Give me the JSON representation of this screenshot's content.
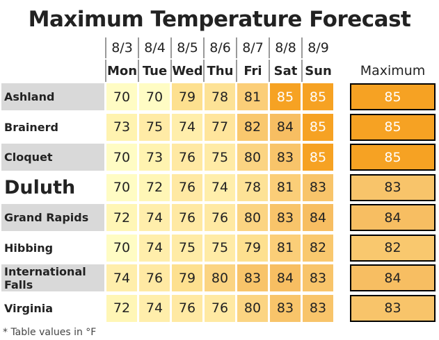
{
  "title": "Maximum Temperature Forecast",
  "columns": [
    {
      "date": "8/3",
      "day": "Mon"
    },
    {
      "date": "8/4",
      "day": "Tue"
    },
    {
      "date": "8/5",
      "day": "Wed"
    },
    {
      "date": "8/6",
      "day": "Thu"
    },
    {
      "date": "8/7",
      "day": "Fri"
    },
    {
      "date": "8/8",
      "day": "Sat"
    },
    {
      "date": "8/9",
      "day": "Sun"
    }
  ],
  "max_header": "Maximum",
  "rows": [
    {
      "name": "Ashland",
      "values": [
        70,
        70,
        79,
        78,
        81,
        85,
        85
      ],
      "maximum": 85,
      "colors": [
        "#fffcc4",
        "#fffcc4",
        "#fde08f",
        "#fde296",
        "#fbce78",
        "#f6a223",
        "#f6a223"
      ],
      "max_color": "#f6a223"
    },
    {
      "name": "Brainerd",
      "values": [
        73,
        75,
        74,
        77,
        82,
        84,
        85
      ],
      "maximum": 85,
      "colors": [
        "#fff3b0",
        "#ffeba6",
        "#ffeeab",
        "#ffe59c",
        "#f9c86e",
        "#f7be62",
        "#f6a223"
      ],
      "max_color": "#f6a223"
    },
    {
      "name": "Cloquet",
      "values": [
        70,
        73,
        76,
        75,
        80,
        83,
        85
      ],
      "maximum": 85,
      "colors": [
        "#fffcc4",
        "#fff3b0",
        "#ffe9a3",
        "#ffeba6",
        "#fbd482",
        "#f8c46a",
        "#f6a223"
      ],
      "max_color": "#f6a223"
    },
    {
      "name": "Duluth",
      "values": [
        70,
        72,
        76,
        74,
        78,
        81,
        83
      ],
      "maximum": 83,
      "colors": [
        "#fffcc4",
        "#fff6b6",
        "#ffe9a3",
        "#ffeeab",
        "#fde296",
        "#fbce78",
        "#f8c46a"
      ],
      "max_color": "#f8c46a"
    },
    {
      "name": "Grand Rapids",
      "values": [
        72,
        74,
        76,
        76,
        80,
        83,
        84
      ],
      "maximum": 84,
      "colors": [
        "#fff6b6",
        "#ffeeab",
        "#ffe9a3",
        "#ffe9a3",
        "#fbd482",
        "#f8c46a",
        "#f7be62"
      ],
      "max_color": "#f7be62"
    },
    {
      "name": "Hibbing",
      "values": [
        70,
        74,
        75,
        75,
        79,
        81,
        82
      ],
      "maximum": 82,
      "colors": [
        "#fffcc4",
        "#ffeeab",
        "#ffeba6",
        "#ffeba6",
        "#fde08f",
        "#fbce78",
        "#f9c86e"
      ],
      "max_color": "#f9c86e"
    },
    {
      "name": "International Falls",
      "values": [
        74,
        76,
        79,
        80,
        83,
        84,
        83
      ],
      "maximum": 84,
      "colors": [
        "#ffeeab",
        "#ffe9a3",
        "#fde08f",
        "#fbd482",
        "#f8c46a",
        "#f7be62",
        "#f8c46a"
      ],
      "max_color": "#f7be62"
    },
    {
      "name": "Virginia",
      "values": [
        72,
        74,
        76,
        76,
        80,
        83,
        83
      ],
      "maximum": 83,
      "colors": [
        "#fff6b6",
        "#ffeeab",
        "#ffe9a3",
        "#ffe9a3",
        "#fbd482",
        "#f8c46a",
        "#f8c46a"
      ],
      "max_color": "#f8c46a"
    }
  ],
  "footnote": "* Table values in °F"
}
